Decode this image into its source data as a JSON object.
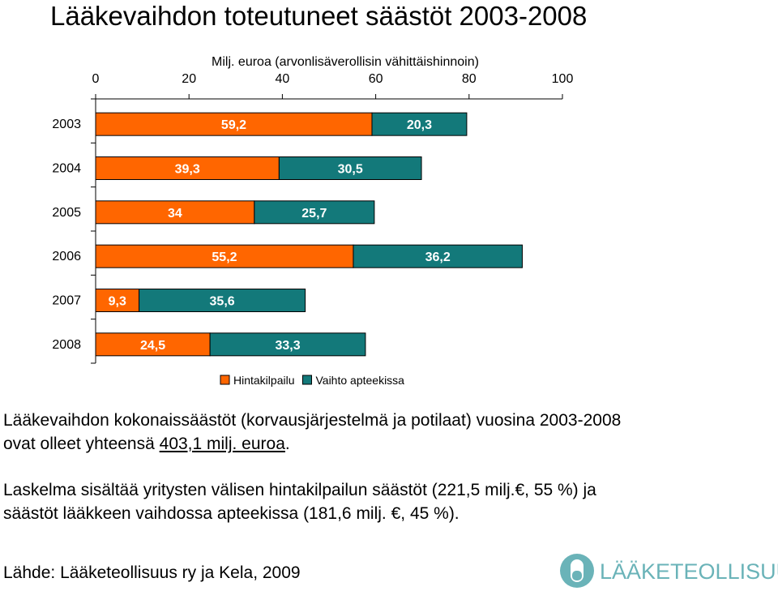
{
  "title": "Lääkevaihdon toteutuneet säästöt 2003-2008",
  "chart_data": {
    "type": "bar",
    "orientation": "horizontal",
    "stacked": true,
    "axis_title": "Milj. euroa (arvonlisäverollisin vähittäishinnoin)",
    "xlim": [
      0,
      100
    ],
    "x_ticks": [
      "0",
      "20",
      "40",
      "60",
      "80",
      "100"
    ],
    "categories": [
      "2003",
      "2004",
      "2005",
      "2006",
      "2007",
      "2008"
    ],
    "series": [
      {
        "name": "Hintakilpailu",
        "color": "#ff6600",
        "values": [
          59.2,
          39.3,
          34,
          55.2,
          9.3,
          24.5
        ],
        "labels": [
          "59,2",
          "39,3",
          "34",
          "55,2",
          "9,3",
          "24,5"
        ]
      },
      {
        "name": "Vaihto apteekissa",
        "color": "#13797a",
        "values": [
          20.3,
          30.5,
          25.7,
          36.2,
          35.6,
          33.3
        ],
        "labels": [
          "20,3",
          "30,5",
          "25,7",
          "36,2",
          "35,6",
          "33,3"
        ]
      }
    ],
    "legend_position": "bottom"
  },
  "text": {
    "para1_line1": "Lääkevaihdon kokonaissäästöt (korvausjärjestelmä ja potilaat) vuosina 2003-2008",
    "para1_line2_a": "ovat olleet yhteensä ",
    "para1_line2_b": "403,1 milj. euroa",
    "para1_line2_c": ".",
    "para2_line1": "Laskelma sisältää yritysten välisen hintakilpailun säästöt (221,5 milj.€, 55 %) ja",
    "para2_line2": "säästöt lääkkeen vaihdossa apteekissa (181,6 milj. €, 45 %).",
    "source": "Lähde: Lääketeollisuus ry ja Kela, 2009"
  },
  "logo": {
    "text": "LÄÄKETEOLLISUUS",
    "color": "#6ab3b8"
  }
}
